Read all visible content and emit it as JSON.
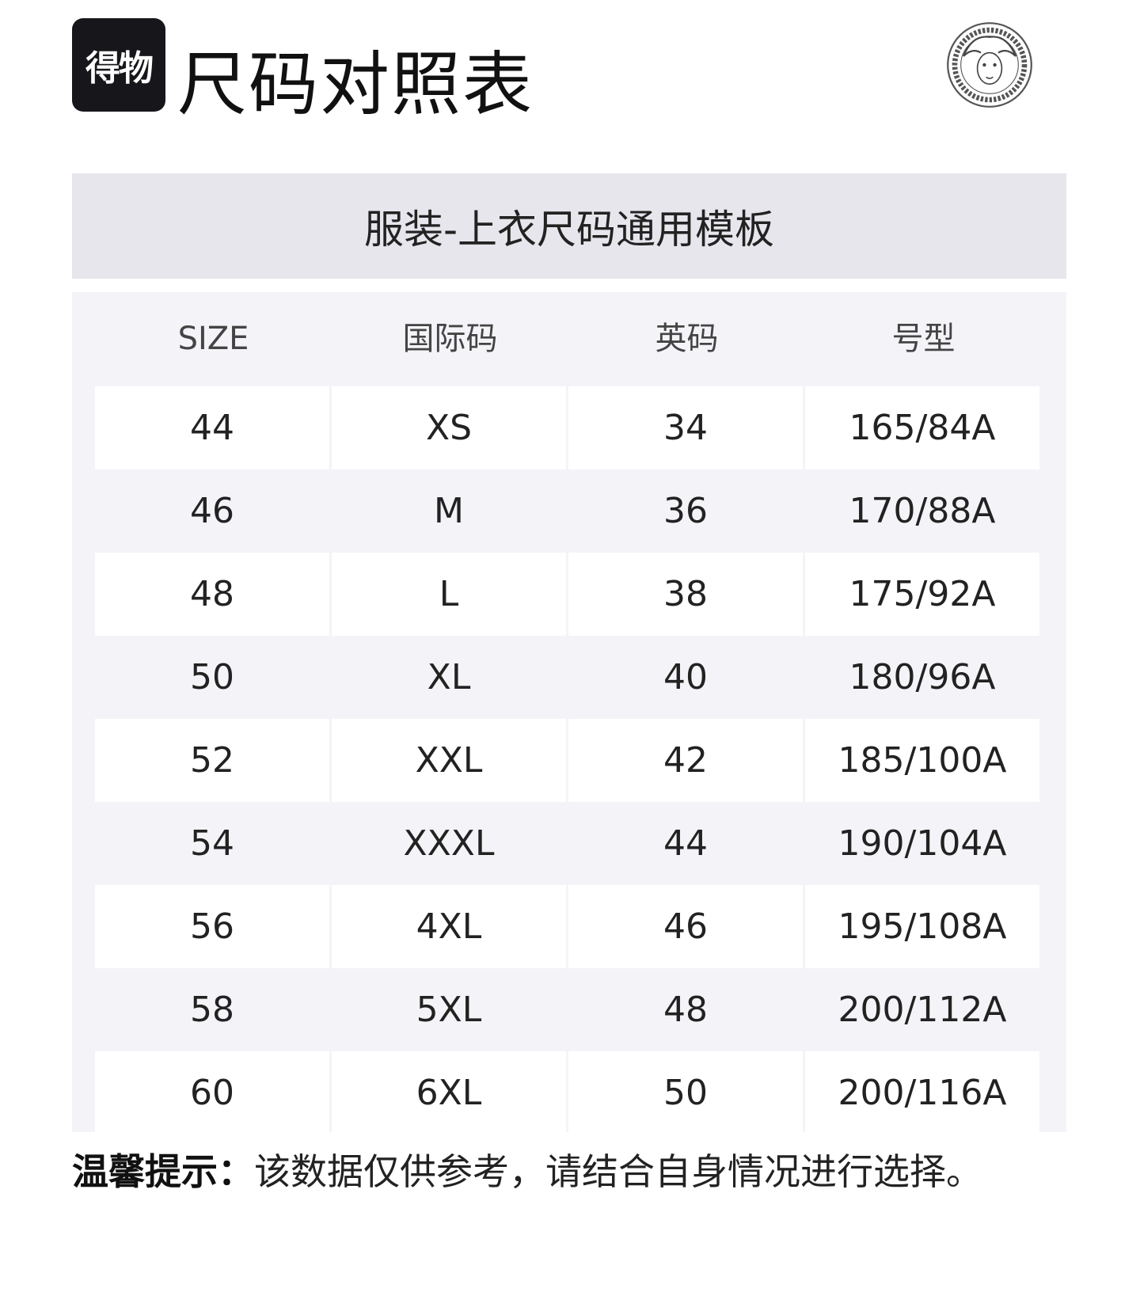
{
  "brand": {
    "logo_text": "得物"
  },
  "header": {
    "title": "尺码对照表",
    "medusa_logo": "medusa-emblem"
  },
  "band": {
    "subtitle": "服装-上衣尺码通用模板"
  },
  "table": {
    "columns": [
      "SIZE",
      "国际码",
      "英码",
      "号型"
    ],
    "rows": [
      [
        "44",
        "XS",
        "34",
        "165/84A"
      ],
      [
        "46",
        "M",
        "36",
        "170/88A"
      ],
      [
        "48",
        "L",
        "38",
        "175/92A"
      ],
      [
        "50",
        "XL",
        "40",
        "180/96A"
      ],
      [
        "52",
        "XXL",
        "42",
        "185/100A"
      ],
      [
        "54",
        "XXXL",
        "44",
        "190/104A"
      ],
      [
        "56",
        "4XL",
        "46",
        "195/108A"
      ],
      [
        "58",
        "5XL",
        "48",
        "200/112A"
      ],
      [
        "60",
        "6XL",
        "50",
        "200/116A"
      ]
    ]
  },
  "tip": {
    "label": "温馨提示：",
    "text": "该数据仅供参考，请结合自身情况进行选择。"
  },
  "colors": {
    "band": "#e6e6ec",
    "table_bg": "#f4f4f8",
    "logo_bg": "#17171b"
  }
}
